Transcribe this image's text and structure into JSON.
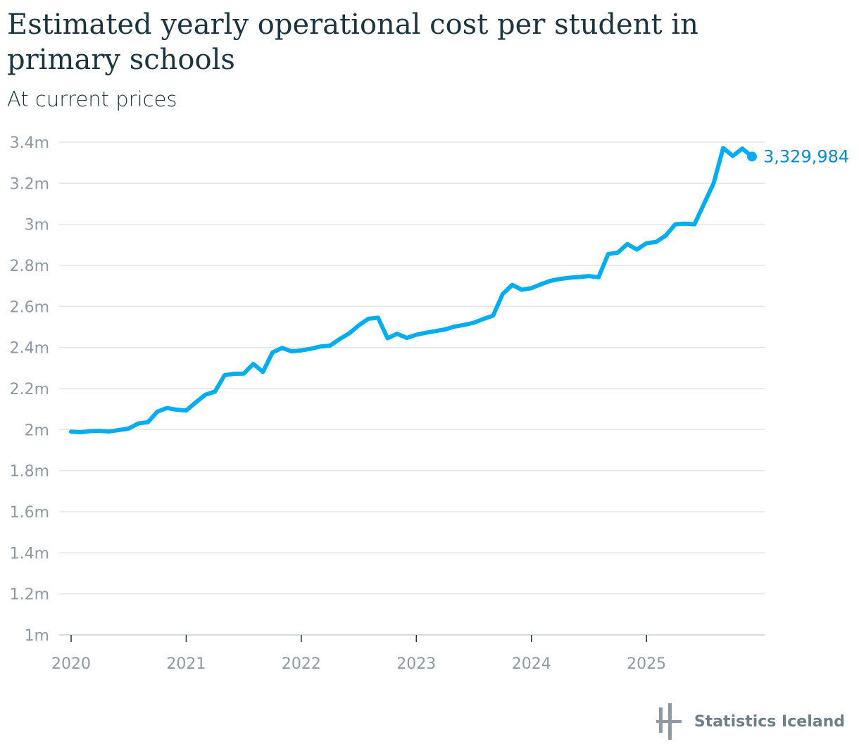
{
  "title": "Estimated yearly operational cost per student in primary schools",
  "subtitle": "At current prices",
  "brand": {
    "name": "Statistics Iceland"
  },
  "colors": {
    "line": "#00aeef",
    "end_label": "#0a8ccc",
    "grid": "#e3e6e8",
    "axis": "#8d9aa3"
  },
  "chart_data": {
    "type": "line",
    "title": "Estimated yearly operational cost per student in primary schools",
    "subtitle": "At current prices",
    "xlabel": "",
    "ylabel": "",
    "ylim": [
      1000000,
      3400000
    ],
    "xlim": [
      "2020-01",
      "2025-12"
    ],
    "y_ticks": [
      1000000,
      1200000,
      1400000,
      1600000,
      1800000,
      2000000,
      2200000,
      2400000,
      2600000,
      2800000,
      3000000,
      3200000,
      3400000
    ],
    "y_tick_labels": [
      "1m",
      "1.2m",
      "1.4m",
      "1.6m",
      "1.8m",
      "2m",
      "2.2m",
      "2.4m",
      "2.6m",
      "2.8m",
      "3m",
      "3.2m",
      "3.4m"
    ],
    "x_ticks": [
      "2020-01",
      "2021-01",
      "2022-01",
      "2023-01",
      "2024-01",
      "2025-01"
    ],
    "x_tick_labels": [
      "2020",
      "2021",
      "2022",
      "2023",
      "2024",
      "2025"
    ],
    "grid": true,
    "end_label": "3,329,984",
    "series": [
      {
        "x": [
          "2020-01",
          "2020-02",
          "2020-03",
          "2020-04",
          "2020-05",
          "2020-06",
          "2020-07",
          "2020-08",
          "2020-09",
          "2020-10",
          "2020-11",
          "2020-12",
          "2021-01",
          "2021-02",
          "2021-03",
          "2021-04",
          "2021-05",
          "2021-06",
          "2021-07",
          "2021-08",
          "2021-09",
          "2021-10",
          "2021-11",
          "2021-12",
          "2022-01",
          "2022-02",
          "2022-03",
          "2022-04",
          "2022-05",
          "2022-06",
          "2022-07",
          "2022-08",
          "2022-09",
          "2022-10",
          "2022-11",
          "2022-12",
          "2023-01",
          "2023-02",
          "2023-03",
          "2023-04",
          "2023-05",
          "2023-06",
          "2023-07",
          "2023-08",
          "2023-09",
          "2023-10",
          "2023-11",
          "2023-12",
          "2024-01",
          "2024-02",
          "2024-03",
          "2024-04",
          "2024-05",
          "2024-06",
          "2024-07",
          "2024-08",
          "2024-09",
          "2024-10",
          "2024-11",
          "2024-12",
          "2025-01",
          "2025-02",
          "2025-03",
          "2025-04",
          "2025-05",
          "2025-06",
          "2025-07",
          "2025-08",
          "2025-09",
          "2025-10",
          "2025-11",
          "2025-12"
        ],
        "values": [
          1990000,
          1987000,
          1993000,
          1994000,
          1991000,
          1998000,
          2005000,
          2030000,
          2036000,
          2088000,
          2105000,
          2097000,
          2093000,
          2133000,
          2170000,
          2185000,
          2265000,
          2272000,
          2273000,
          2320000,
          2281000,
          2376000,
          2398000,
          2381000,
          2386000,
          2394000,
          2405000,
          2409000,
          2441000,
          2469000,
          2508000,
          2540000,
          2545000,
          2445000,
          2467000,
          2447000,
          2462000,
          2472000,
          2480000,
          2488000,
          2502000,
          2510000,
          2521000,
          2539000,
          2555000,
          2660000,
          2705000,
          2681000,
          2689000,
          2708000,
          2725000,
          2734000,
          2740000,
          2743000,
          2748000,
          2742000,
          2855000,
          2862000,
          2904000,
          2877000,
          2908000,
          2914000,
          2945000,
          3000000,
          3003000,
          3000000,
          3100000,
          3200000,
          3372000,
          3333000,
          3369000,
          3329984
        ]
      }
    ]
  }
}
